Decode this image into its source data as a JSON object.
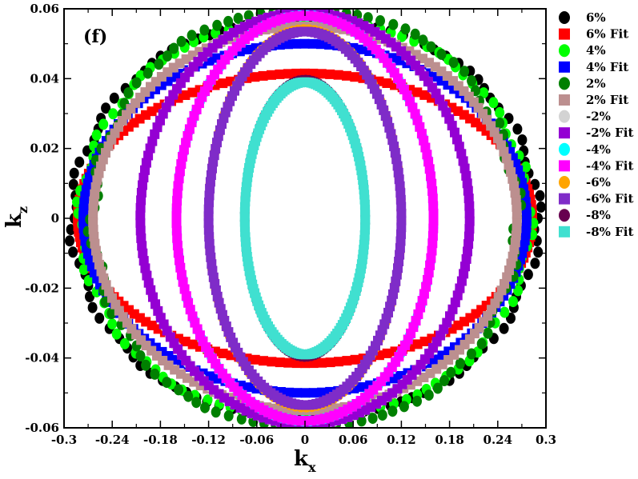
{
  "chart_data": {
    "type": "scatter",
    "panel_label": "(f)",
    "xlabel": {
      "main": "k",
      "sub": "x"
    },
    "ylabel": {
      "main": "k",
      "sub": "z"
    },
    "xlim": [
      -0.3,
      0.3
    ],
    "ylim": [
      -0.06,
      0.06
    ],
    "xticks": [
      -0.3,
      -0.24,
      -0.18,
      -0.12,
      -0.06,
      0,
      0.06,
      0.12,
      0.18,
      0.24,
      0.3
    ],
    "xtick_labels": [
      "-0.3",
      "-0.24",
      "-0.18",
      "-0.12",
      "-0.06",
      "0",
      "0.06",
      "0.12",
      "0.18",
      "0.24",
      "0.3"
    ],
    "yticks": [
      -0.06,
      -0.04,
      -0.02,
      0,
      0.02,
      0.04,
      0.06
    ],
    "ytick_labels": [
      "-0.06",
      "-0.04",
      "-0.02",
      "0",
      "0.02",
      "0.04",
      "0.06"
    ],
    "legend_position": "right",
    "series": [
      {
        "name": "6%",
        "kind": "data",
        "marker": "circle",
        "color": "#000000",
        "a": 0.29,
        "b": 0.0565,
        "bulge": 0.5,
        "spread": 0.005
      },
      {
        "name": "6% Fit",
        "kind": "fit",
        "marker": "square",
        "color": "#ff0000",
        "a": 0.283,
        "b": 0.0415,
        "bulge": 0.0
      },
      {
        "name": "4%",
        "kind": "data",
        "marker": "circle",
        "color": "#00ff00",
        "a": 0.28,
        "b": 0.0565,
        "bulge": 0.5,
        "spread": 0.005
      },
      {
        "name": "4% Fit",
        "kind": "fit",
        "marker": "square",
        "color": "#0000ff",
        "a": 0.276,
        "b": 0.05,
        "bulge": 0.0
      },
      {
        "name": "2%",
        "kind": "data",
        "marker": "circle",
        "color": "#008000",
        "a": 0.265,
        "b": 0.0595,
        "bulge": 0.5,
        "spread": 0.006
      },
      {
        "name": "2% Fit",
        "kind": "fit",
        "marker": "square",
        "color": "#bc8f8f",
        "a": 0.264,
        "b": 0.055,
        "bulge": 0.0
      },
      {
        "name": "-2%",
        "kind": "data",
        "marker": "circle",
        "color": "#d3d3d3",
        "a": 0.205,
        "b": 0.059,
        "bulge": 0.0,
        "spread": 0.0
      },
      {
        "name": "-2% Fit",
        "kind": "fit",
        "marker": "square",
        "color": "#9400d3",
        "a": 0.205,
        "b": 0.059,
        "bulge": 0.0
      },
      {
        "name": "-4%",
        "kind": "data",
        "marker": "circle",
        "color": "#00ffff",
        "a": 0.16,
        "b": 0.058,
        "bulge": 0.0,
        "spread": 0.0
      },
      {
        "name": "-4% Fit",
        "kind": "fit",
        "marker": "square",
        "color": "#ff00ff",
        "a": 0.16,
        "b": 0.058,
        "bulge": 0.0
      },
      {
        "name": "-6%",
        "kind": "data",
        "marker": "circle",
        "color": "#ffa500",
        "a": 0.12,
        "b": 0.054,
        "bulge": 0.0,
        "spread": 0.0
      },
      {
        "name": "-6% Fit",
        "kind": "fit",
        "marker": "square",
        "color": "#7f2cc8",
        "a": 0.12,
        "b": 0.0535,
        "bulge": 0.0
      },
      {
        "name": "-8%",
        "kind": "data",
        "marker": "circle",
        "color": "#67004f",
        "a": 0.075,
        "b": 0.0395,
        "bulge": 0.0,
        "spread": 0.0
      },
      {
        "name": "-8% Fit",
        "kind": "fit",
        "marker": "square",
        "color": "#40e0d0",
        "a": 0.075,
        "b": 0.039,
        "bulge": 0.0
      }
    ]
  }
}
